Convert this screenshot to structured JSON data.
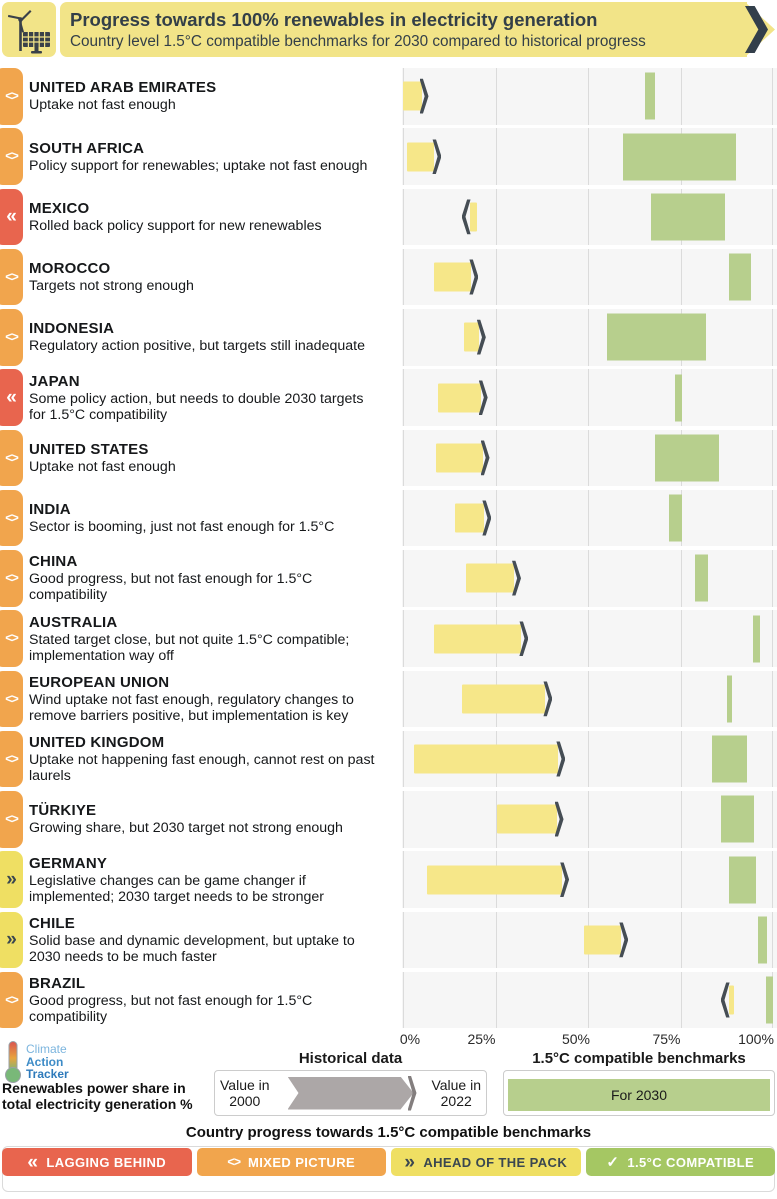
{
  "header": {
    "title": "Progress towards 100% renewables in electricity generation",
    "subtitle": "Country level 1.5°C compatible benchmarks for 2030 compared to historical progress"
  },
  "logo": {
    "line1": "Climate",
    "line2": "Action",
    "line3": "Tracker"
  },
  "legend": {
    "historical_header": "Historical data",
    "benchmark_header": "1.5°C compatible benchmarks",
    "value_2000": "Value in\n2000",
    "value_2022": "Value in\n2022",
    "benchmark_bar_label": "For 2030",
    "axis_label": "Renewables power share in total electricity generation %",
    "progress_title": "Country progress towards 1.5°C compatible benchmarks"
  },
  "statuses": {
    "lagging": {
      "label": "LAGGING BEHIND",
      "glyph": "«",
      "color": "#E8654E",
      "text_color": "#FFFFFF"
    },
    "mixed": {
      "label": "MIXED PICTURE",
      "glyph": "<>",
      "color": "#F1A54D",
      "text_color": "#FFFFFF"
    },
    "ahead": {
      "label": "AHEAD OF THE PACK",
      "glyph": "»",
      "color": "#EFDF63",
      "text_color": "#3A4750"
    },
    "compatible": {
      "label": "1.5°C COMPATIBLE",
      "glyph": "✓",
      "color": "#A5C763",
      "text_color": "#FFFFFF"
    }
  },
  "footer_badge_order": [
    "lagging",
    "mixed",
    "ahead",
    "compatible"
  ],
  "colors": {
    "banner": "#F2E488",
    "hist_bar": "#F6E789",
    "bench_bar": "#B7CF8D",
    "arrow": "#454D54",
    "legend_arrow_fill": "#ACA7A7",
    "legend_arrow_tip": "#837E7E",
    "row_bg": "#F6F6F6",
    "gridline": "#DBDBDB"
  },
  "chart_data": {
    "type": "bar",
    "title": "Progress towards 100% renewables in electricity generation",
    "unit": "% renewables share in electricity generation",
    "xlim": [
      0,
      100
    ],
    "x_ticks": [
      "0%",
      "25%",
      "50%",
      "75%",
      "100%"
    ],
    "grid": "vertical gridlines at 0/25/50/75/100%",
    "legend_position": "bottom",
    "series_legend": {
      "historical": "Value in 2000 → Value in 2022",
      "benchmark": "For 2030"
    },
    "countries": [
      {
        "name": "UNITED ARAB EMIRATES",
        "note": "Uptake not fast enough",
        "status": "mixed",
        "value_2000": 0,
        "value_2022": 5,
        "benchmark_2030": [
          65.5,
          68
        ],
        "trend": "up"
      },
      {
        "name": "SOUTH AFRICA",
        "note": "Policy support for renewables; uptake not fast enough",
        "status": "mixed",
        "value_2000": 1,
        "value_2022": 8.5,
        "benchmark_2030": [
          59.5,
          90
        ],
        "trend": "up"
      },
      {
        "name": "MEXICO",
        "note": "Rolled back policy support for new renewables",
        "status": "lagging",
        "value_2000": 20,
        "value_2022": 18,
        "benchmark_2030": [
          67,
          87
        ],
        "trend": "down"
      },
      {
        "name": "MOROCCO",
        "note": "Targets not strong enough",
        "status": "mixed",
        "value_2000": 8.5,
        "value_2022": 18.5,
        "benchmark_2030": [
          88,
          94
        ],
        "trend": "up"
      },
      {
        "name": "INDONESIA",
        "note": "Regulatory action positive, but targets still inadequate",
        "status": "mixed",
        "value_2000": 16.5,
        "value_2022": 20.5,
        "benchmark_2030": [
          55,
          82
        ],
        "trend": "up"
      },
      {
        "name": "JAPAN",
        "note": "Some policy action, but needs to double 2030 targets for 1.5°C compatibility",
        "status": "lagging",
        "value_2000": 9.5,
        "value_2022": 21,
        "benchmark_2030": [
          73.5,
          75.5
        ],
        "trend": "up"
      },
      {
        "name": "UNITED STATES",
        "note": "Uptake not fast enough",
        "status": "mixed",
        "value_2000": 9,
        "value_2022": 21.5,
        "benchmark_2030": [
          68,
          85.5
        ],
        "trend": "up"
      },
      {
        "name": "INDIA",
        "note": "Sector is booming, just not fast enough for 1.5°C",
        "status": "mixed",
        "value_2000": 14,
        "value_2022": 22,
        "benchmark_2030": [
          72,
          75.5
        ],
        "trend": "up"
      },
      {
        "name": "CHINA",
        "note": "Good progress, but not fast enough for 1.5°C compatibility",
        "status": "mixed",
        "value_2000": 17,
        "value_2022": 30,
        "benchmark_2030": [
          79,
          82.5
        ],
        "trend": "up"
      },
      {
        "name": "AUSTRALIA",
        "note": "Stated target close, but not quite 1.5°C compatible; implementation way off",
        "status": "mixed",
        "value_2000": 8.5,
        "value_2022": 32,
        "benchmark_2030": [
          94.5,
          96.5
        ],
        "trend": "up"
      },
      {
        "name": "EUROPEAN UNION",
        "note": "Wind uptake not fast enough, regulatory changes to remove barriers positive, but implementation is key",
        "status": "mixed",
        "value_2000": 16,
        "value_2022": 38.5,
        "benchmark_2030": [
          87.5,
          89
        ],
        "trend": "up"
      },
      {
        "name": "UNITED KINGDOM",
        "note": "Uptake not happening fast enough, cannot rest on past laurels",
        "status": "mixed",
        "value_2000": 3,
        "value_2022": 42,
        "benchmark_2030": [
          83.5,
          93
        ],
        "trend": "up"
      },
      {
        "name": "TÜRKIYE",
        "note": "Growing share, but 2030 target not strong enough",
        "status": "mixed",
        "value_2000": 25.5,
        "value_2022": 41.5,
        "benchmark_2030": [
          86,
          95
        ],
        "trend": "up"
      },
      {
        "name": "GERMANY",
        "note": "Legislative changes can be game changer if implemented; 2030 target needs to be stronger",
        "status": "ahead",
        "value_2000": 6.5,
        "value_2022": 43,
        "benchmark_2030": [
          88,
          95.5
        ],
        "trend": "up"
      },
      {
        "name": "CHILE",
        "note": "Solid base and dynamic development, but uptake to 2030 needs to be much faster",
        "status": "ahead",
        "value_2000": 49,
        "value_2022": 59,
        "benchmark_2030": [
          96,
          98.5
        ],
        "trend": "up"
      },
      {
        "name": "BRAZIL",
        "note": "Good progress, but not fast enough for 1.5°C compatibility",
        "status": "mixed",
        "value_2000": 89.5,
        "value_2022": 88,
        "benchmark_2030": [
          98,
          100
        ],
        "trend": "down"
      }
    ]
  }
}
